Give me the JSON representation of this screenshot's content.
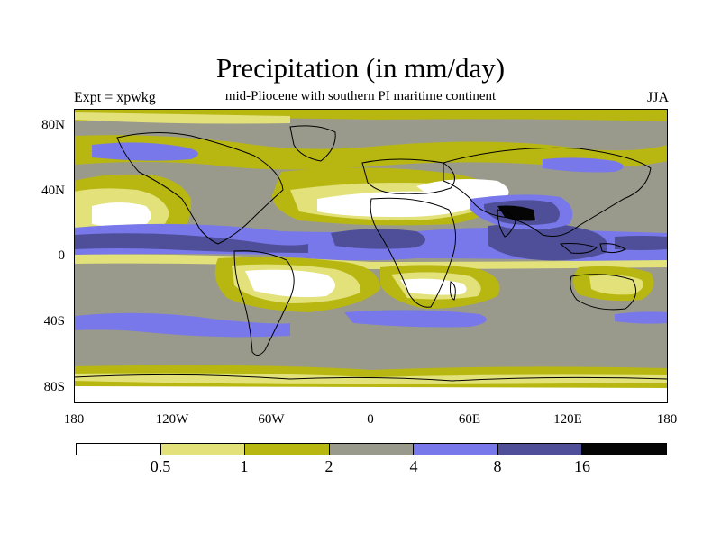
{
  "map": {
    "title": "Precipitation (in mm/day)",
    "subtitle": "mid-Pliocene with southern PI maritime continent",
    "left_label": "Expt = xpwkg",
    "right_label": "JJA",
    "lat_labels": [
      "80N",
      "40N",
      "0",
      "40S",
      "80S"
    ],
    "lon_labels": [
      "180",
      "120W",
      "60W",
      "0",
      "60E",
      "120E",
      "180"
    ]
  },
  "colorbar": {
    "colors": [
      "#ffffff",
      "#e2e17a",
      "#b8b712",
      "#9a9a8c",
      "#7878ea",
      "#4e4e99",
      "#050505"
    ],
    "labels": [
      "0.5",
      "1",
      "2",
      "4",
      "8",
      "16"
    ]
  }
}
